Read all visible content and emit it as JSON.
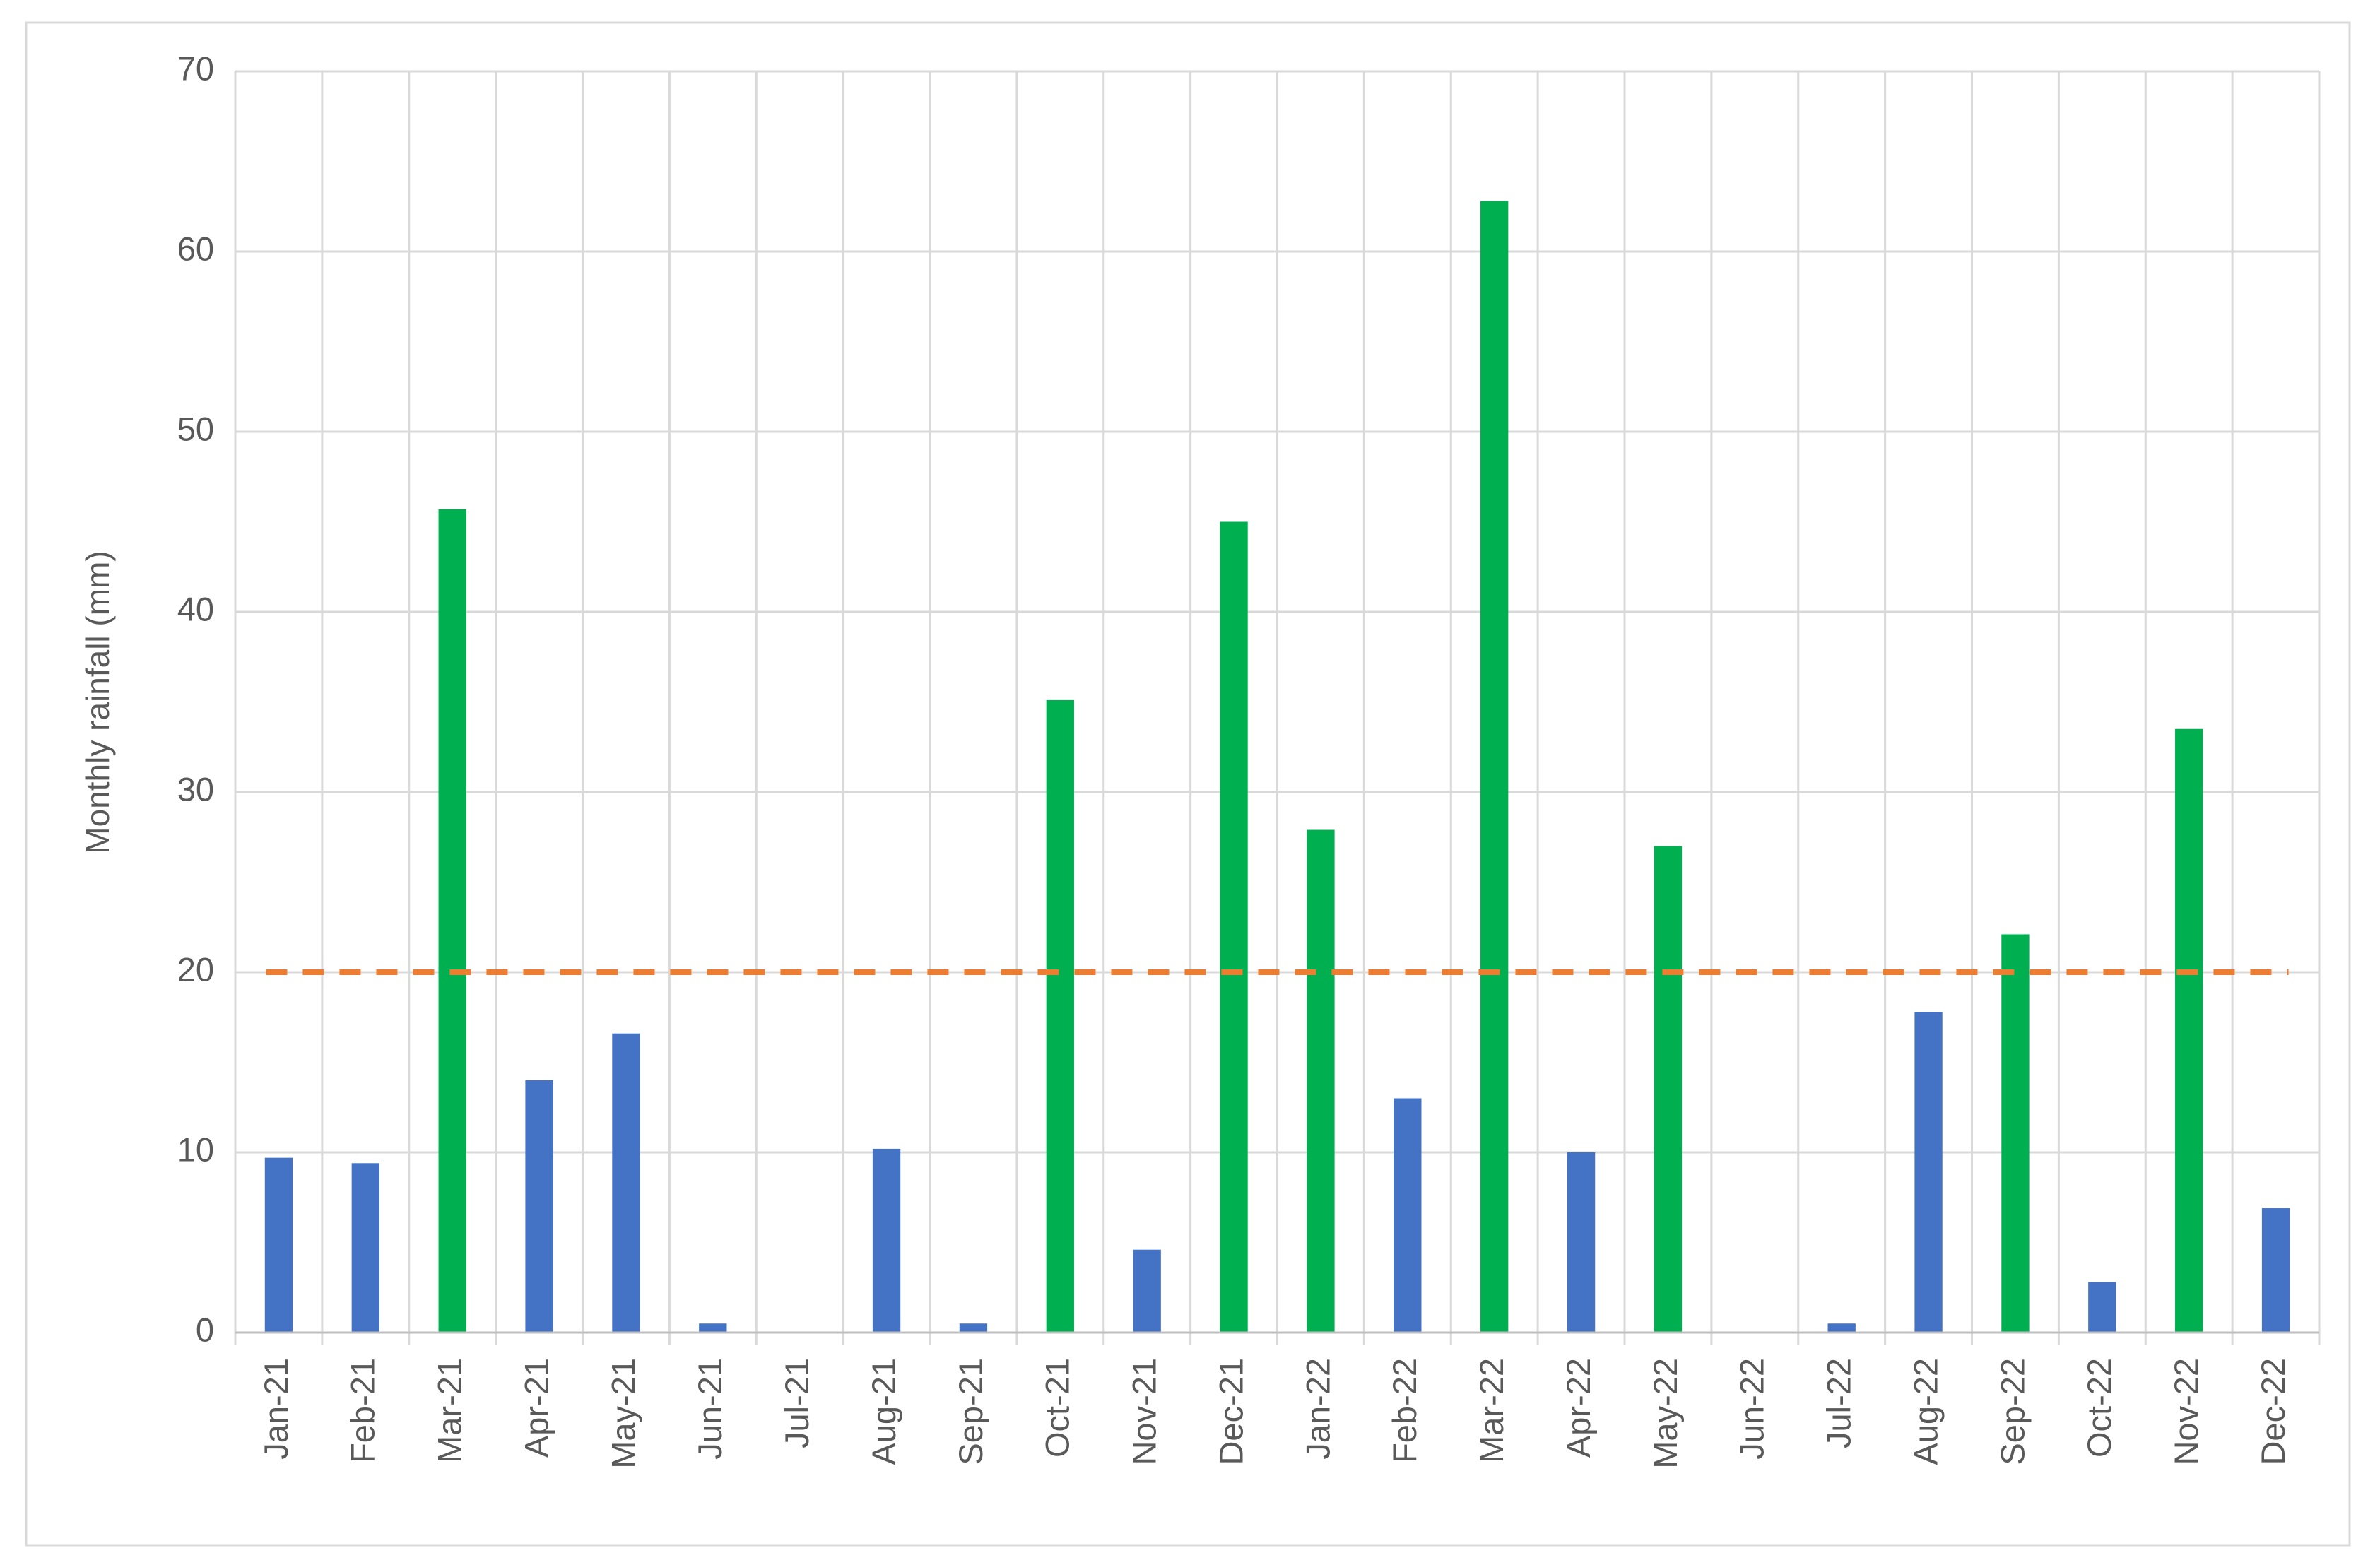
{
  "chart_data": {
    "type": "bar",
    "y_label": "Monthly rainfall (mm)",
    "categories": [
      "Jan-21",
      "Feb-21",
      "Mar-21",
      "Apr-21",
      "May-21",
      "Jun-21",
      "Jul-21",
      "Aug-21",
      "Sep-21",
      "Oct-21",
      "Nov-21",
      "Dec-21",
      "Jan-22",
      "Feb-22",
      "Mar-22",
      "Apr-22",
      "May-22",
      "Jun-22",
      "Jul-22",
      "Aug-22",
      "Sep-22",
      "Oct-22",
      "Nov-22",
      "Dec-22"
    ],
    "values": [
      9.7,
      9.4,
      45.7,
      14,
      16.6,
      0.5,
      0,
      10.2,
      0.5,
      35.1,
      4.6,
      45,
      27.9,
      13,
      62.8,
      10,
      27,
      0,
      0.5,
      17.8,
      22.1,
      2.8,
      33.5,
      6.9
    ],
    "colors": [
      "#4472c4",
      "#4472c4",
      "#00b050",
      "#4472c4",
      "#4472c4",
      "#4472c4",
      "#4472c4",
      "#4472c4",
      "#4472c4",
      "#00b050",
      "#4472c4",
      "#00b050",
      "#00b050",
      "#4472c4",
      "#00b050",
      "#4472c4",
      "#00b050",
      "#4472c4",
      "#4472c4",
      "#4472c4",
      "#00b050",
      "#4472c4",
      "#00b050",
      "#4472c4"
    ],
    "reference_line": {
      "value": 20,
      "color": "#ed7d31",
      "style": "dashed"
    },
    "ylim": [
      0,
      70
    ],
    "yticks": [
      0,
      10,
      20,
      30,
      40,
      50,
      60,
      70
    ],
    "grid": true
  }
}
